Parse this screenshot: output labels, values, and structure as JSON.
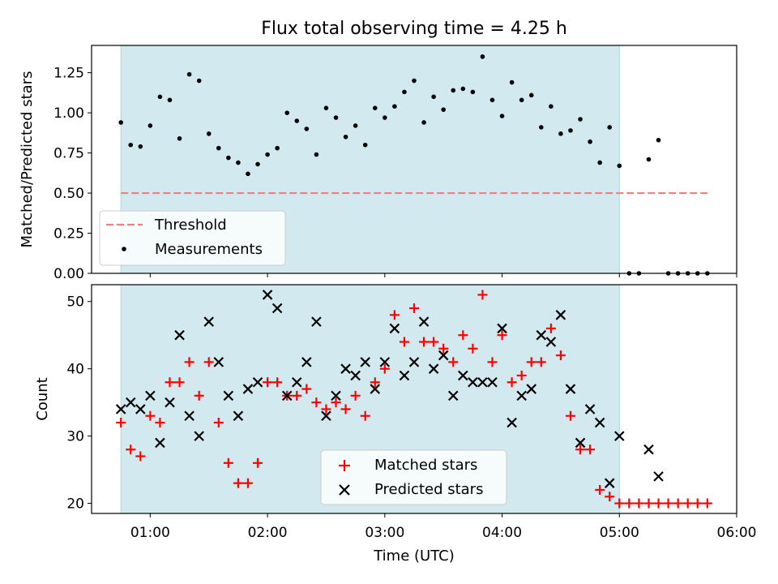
{
  "title": "Flux total observing time = 4.25 h",
  "chart_data": [
    {
      "type": "scatter",
      "ylabel": "Matched/Predicted stars",
      "xlim": [
        "00:30",
        "06:00"
      ],
      "ylim": [
        0,
        1.42
      ],
      "yticks": [
        0.0,
        0.25,
        0.5,
        0.75,
        1.0,
        1.25
      ],
      "ytick_labels": [
        "0.00",
        "0.25",
        "0.50",
        "0.75",
        "1.00",
        "1.25"
      ],
      "observing_window": [
        "00:45",
        "05:00"
      ],
      "observing_window_color": "#d3e9f0",
      "threshold": {
        "name": "Threshold",
        "y": 0.5,
        "x_range": [
          "00:45",
          "05:45"
        ],
        "color": "#f08080",
        "style": "dashed"
      },
      "series": [
        {
          "name": "Measurements",
          "marker": "dot",
          "color": "#000000",
          "x": [
            "00:45",
            "00:50",
            "00:55",
            "01:00",
            "01:05",
            "01:10",
            "01:15",
            "01:20",
            "01:25",
            "01:30",
            "01:35",
            "01:40",
            "01:45",
            "01:50",
            "01:55",
            "02:00",
            "02:05",
            "02:10",
            "02:15",
            "02:20",
            "02:25",
            "02:30",
            "02:35",
            "02:40",
            "02:45",
            "02:50",
            "02:55",
            "03:00",
            "03:05",
            "03:10",
            "03:15",
            "03:20",
            "03:25",
            "03:30",
            "03:35",
            "03:40",
            "03:45",
            "03:50",
            "03:55",
            "04:00",
            "04:05",
            "04:10",
            "04:15",
            "04:20",
            "04:25",
            "04:30",
            "04:35",
            "04:40",
            "04:45",
            "04:50",
            "04:55",
            "05:00",
            "05:05",
            "05:10",
            "05:15",
            "05:20",
            "05:25",
            "05:30",
            "05:35",
            "05:40",
            "05:45"
          ],
          "y": [
            0.94,
            0.8,
            0.79,
            0.92,
            1.1,
            1.08,
            0.84,
            1.24,
            1.2,
            0.87,
            0.78,
            0.72,
            0.69,
            0.62,
            0.68,
            0.74,
            0.78,
            1.0,
            0.95,
            0.9,
            0.74,
            1.03,
            0.97,
            0.85,
            0.92,
            0.8,
            1.03,
            0.97,
            1.04,
            1.13,
            1.2,
            0.94,
            1.1,
            1.02,
            1.14,
            1.15,
            1.13,
            1.35,
            1.08,
            0.98,
            1.19,
            1.08,
            1.11,
            0.91,
            1.04,
            0.87,
            0.89,
            0.96,
            0.82,
            0.69,
            0.91,
            0.67,
            0.0,
            0.0,
            0.71,
            0.83,
            0.0,
            0.0,
            0.0,
            0.0,
            0.0
          ]
        }
      ],
      "legend": {
        "placement": "lower-left",
        "entries": [
          "Threshold",
          "Measurements"
        ]
      }
    },
    {
      "type": "scatter",
      "xlabel": "Time (UTC)",
      "ylabel": "Count",
      "xlim": [
        "00:30",
        "06:00"
      ],
      "ylim": [
        18.5,
        52.5
      ],
      "xticks": [
        "01:00",
        "02:00",
        "03:00",
        "04:00",
        "05:00",
        "06:00"
      ],
      "yticks": [
        20,
        30,
        40,
        50
      ],
      "ytick_labels": [
        "20",
        "30",
        "40",
        "50"
      ],
      "observing_window": [
        "00:45",
        "05:00"
      ],
      "observing_window_color": "#d3e9f0",
      "x": [
        "00:45",
        "00:50",
        "00:55",
        "01:00",
        "01:05",
        "01:10",
        "01:15",
        "01:20",
        "01:25",
        "01:30",
        "01:35",
        "01:40",
        "01:45",
        "01:50",
        "01:55",
        "02:00",
        "02:05",
        "02:10",
        "02:15",
        "02:20",
        "02:25",
        "02:30",
        "02:35",
        "02:40",
        "02:45",
        "02:50",
        "02:55",
        "03:00",
        "03:05",
        "03:10",
        "03:15",
        "03:20",
        "03:25",
        "03:30",
        "03:35",
        "03:40",
        "03:45",
        "03:50",
        "03:55",
        "04:00",
        "04:05",
        "04:10",
        "04:15",
        "04:20",
        "04:25",
        "04:30",
        "04:35",
        "04:40",
        "04:45",
        "04:50",
        "04:55",
        "05:00",
        "05:05",
        "05:10",
        "05:15",
        "05:20",
        "05:25",
        "05:30",
        "05:35",
        "05:40",
        "05:45"
      ],
      "series": [
        {
          "name": "Matched stars",
          "marker": "plus",
          "color": "#ff0000",
          "values": [
            32,
            28,
            27,
            33,
            32,
            38,
            38,
            41,
            36,
            41,
            32,
            26,
            23,
            23,
            26,
            38,
            38,
            36,
            36,
            37,
            35,
            34,
            35,
            34,
            36,
            33,
            38,
            40,
            48,
            44,
            49,
            44,
            44,
            43,
            41,
            45,
            43,
            51,
            41,
            45,
            38,
            39,
            41,
            41,
            46,
            42,
            33,
            28,
            28,
            22,
            21,
            20,
            20,
            20,
            20,
            20,
            20,
            20,
            20,
            20,
            20
          ]
        },
        {
          "name": "Predicted stars",
          "marker": "x",
          "color": "#000000",
          "values": [
            34,
            35,
            34,
            36,
            29,
            35,
            45,
            33,
            30,
            47,
            41,
            36,
            33,
            37,
            38,
            51,
            49,
            36,
            38,
            41,
            47,
            33,
            36,
            40,
            39,
            41,
            37,
            41,
            46,
            39,
            41,
            47,
            40,
            42,
            36,
            39,
            38,
            38,
            38,
            46,
            32,
            36,
            37,
            45,
            44,
            48,
            37,
            29,
            34,
            32,
            23,
            30,
            null,
            null,
            28,
            24,
            null,
            null,
            null,
            null,
            null
          ]
        }
      ],
      "legend": {
        "placement": "lower-center",
        "entries": [
          "Matched stars",
          "Predicted stars"
        ]
      }
    }
  ]
}
